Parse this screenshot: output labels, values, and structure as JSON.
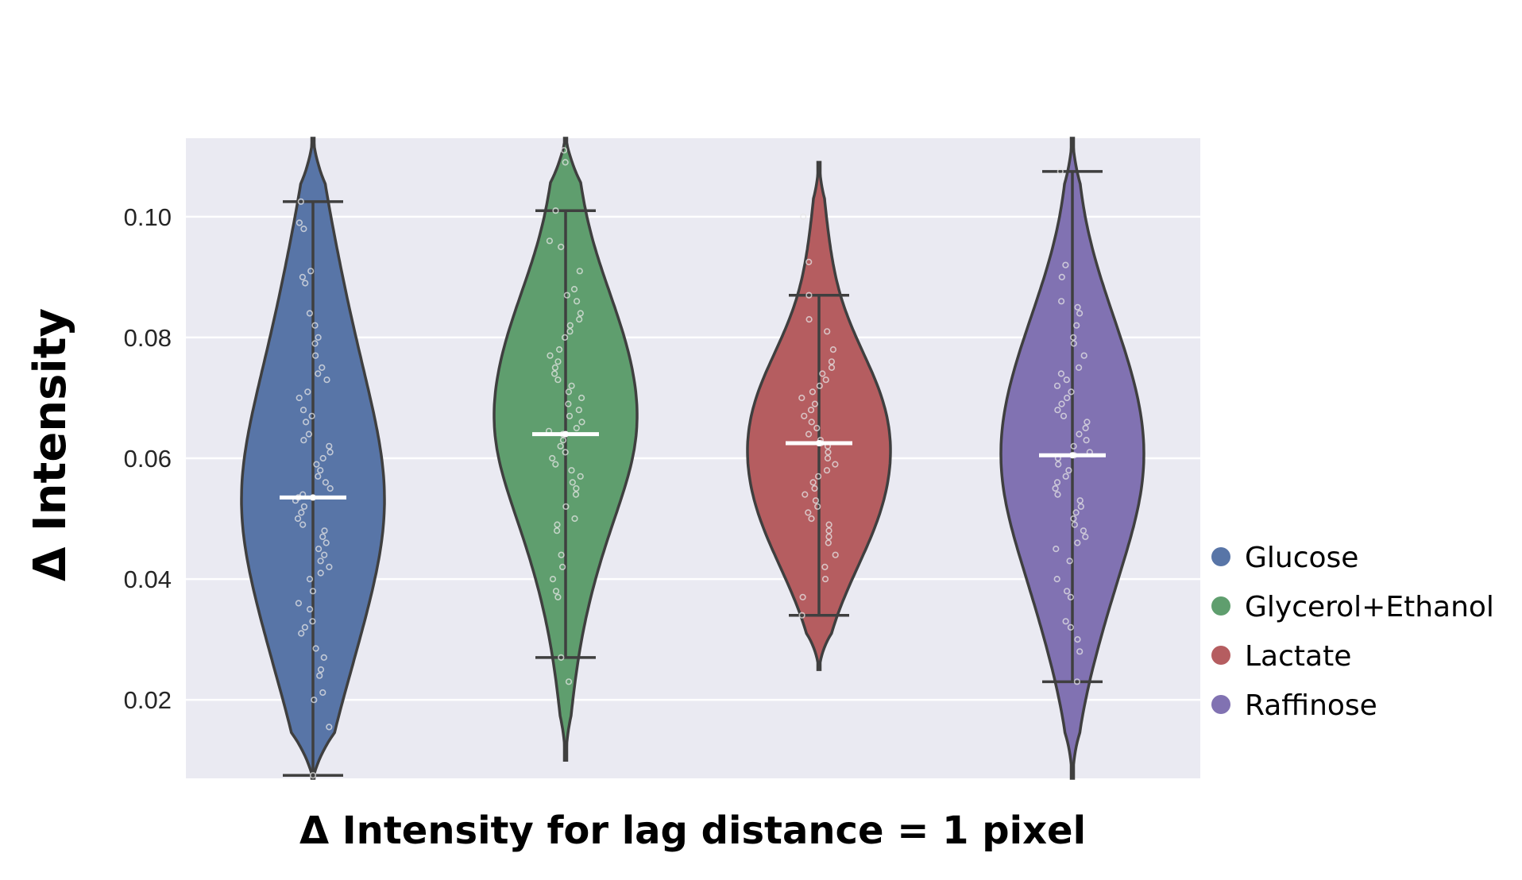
{
  "chart_data": {
    "type": "violin",
    "xlabel": "Δ Intensity for lag distance = 1 pixel",
    "ylabel": "Δ Intensity",
    "ylim": [
      0.007,
      0.113
    ],
    "yticks": [
      "0.02",
      "0.04",
      "0.06",
      "0.08",
      "0.10"
    ],
    "ytick_values": [
      0.02,
      0.04,
      0.06,
      0.08,
      0.1
    ],
    "grid": true,
    "legend_position": "right",
    "series": [
      {
        "name": "Glucose",
        "color": "#5875a7",
        "median": 0.0535,
        "whisker_low": 0.0075,
        "whisker_high": 0.1025,
        "kde_low": 0.007,
        "kde_high": 0.113,
        "bw": 0.012,
        "points": [
          0.0075,
          0.0155,
          0.02,
          0.0212,
          0.024,
          0.025,
          0.027,
          0.0285,
          0.031,
          0.032,
          0.033,
          0.035,
          0.036,
          0.038,
          0.04,
          0.041,
          0.042,
          0.043,
          0.044,
          0.045,
          0.046,
          0.047,
          0.048,
          0.049,
          0.05,
          0.051,
          0.052,
          0.053,
          0.0535,
          0.054,
          0.055,
          0.056,
          0.057,
          0.058,
          0.059,
          0.06,
          0.061,
          0.062,
          0.063,
          0.064,
          0.066,
          0.067,
          0.068,
          0.07,
          0.071,
          0.073,
          0.074,
          0.075,
          0.077,
          0.079,
          0.08,
          0.082,
          0.084,
          0.089,
          0.09,
          0.091,
          0.098,
          0.099,
          0.1025
        ]
      },
      {
        "name": "Glycerol+Ethanol",
        "color": "#5f9e6e",
        "median": 0.064,
        "whisker_low": 0.027,
        "whisker_high": 0.101,
        "kde_low": 0.01,
        "kde_high": 0.113,
        "bw": 0.0095,
        "points": [
          0.023,
          0.027,
          0.037,
          0.038,
          0.04,
          0.042,
          0.044,
          0.048,
          0.049,
          0.05,
          0.052,
          0.054,
          0.055,
          0.056,
          0.057,
          0.058,
          0.059,
          0.06,
          0.061,
          0.062,
          0.063,
          0.064,
          0.0645,
          0.065,
          0.066,
          0.067,
          0.068,
          0.069,
          0.07,
          0.071,
          0.072,
          0.073,
          0.074,
          0.075,
          0.076,
          0.077,
          0.078,
          0.08,
          0.081,
          0.082,
          0.083,
          0.084,
          0.086,
          0.087,
          0.088,
          0.091,
          0.095,
          0.096,
          0.101,
          0.109,
          0.111
        ]
      },
      {
        "name": "Lactate",
        "color": "#b55d60",
        "median": 0.0625,
        "whisker_low": 0.034,
        "whisker_high": 0.087,
        "kde_low": 0.025,
        "kde_high": 0.109,
        "bw": 0.008,
        "points": [
          0.034,
          0.037,
          0.04,
          0.042,
          0.044,
          0.046,
          0.047,
          0.048,
          0.049,
          0.05,
          0.051,
          0.052,
          0.053,
          0.054,
          0.055,
          0.056,
          0.057,
          0.058,
          0.059,
          0.06,
          0.061,
          0.062,
          0.0625,
          0.063,
          0.064,
          0.065,
          0.066,
          0.067,
          0.068,
          0.069,
          0.07,
          0.071,
          0.072,
          0.073,
          0.074,
          0.075,
          0.076,
          0.078,
          0.081,
          0.083,
          0.087,
          0.0925,
          0.1
        ]
      },
      {
        "name": "Raffinose",
        "color": "#8172b2",
        "median": 0.0605,
        "whisker_low": 0.023,
        "whisker_high": 0.1075,
        "kde_low": 0.007,
        "kde_high": 0.113,
        "bw": 0.0115,
        "points": [
          0.023,
          0.028,
          0.03,
          0.032,
          0.033,
          0.037,
          0.038,
          0.04,
          0.043,
          0.045,
          0.046,
          0.047,
          0.048,
          0.049,
          0.05,
          0.051,
          0.052,
          0.053,
          0.054,
          0.055,
          0.056,
          0.057,
          0.058,
          0.059,
          0.06,
          0.0605,
          0.061,
          0.062,
          0.063,
          0.064,
          0.065,
          0.066,
          0.067,
          0.068,
          0.069,
          0.07,
          0.071,
          0.072,
          0.073,
          0.074,
          0.075,
          0.077,
          0.079,
          0.08,
          0.082,
          0.084,
          0.085,
          0.086,
          0.09,
          0.092,
          0.1075
        ]
      }
    ]
  }
}
